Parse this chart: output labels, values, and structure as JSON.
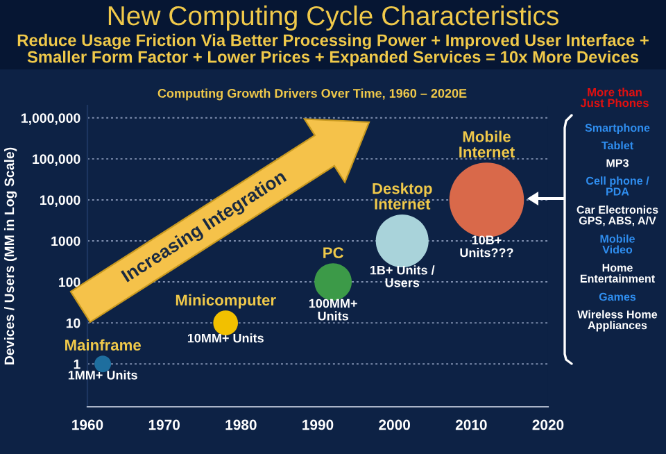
{
  "chart_data": {
    "type": "bubble",
    "title": "New Computing Cycle Characteristics",
    "subtitle": "Reduce Usage Friction Via Better Processing Power + Improved User Interface +\nSmaller Form Factor + Lower Prices + Expanded Services = 10x More Devices",
    "ylabel": "Devices / Users (MM in Log Scale)",
    "series": [
      {
        "x": [
          1962,
          1978,
          1992,
          2001,
          2012
        ],
        "values": [
          1,
          10,
          100,
          1000,
          10000
        ],
        "sizes": [
          0.05,
          0.11,
          0.25,
          0.5,
          1
        ],
        "colors": [
          "#1e6e9e",
          "#f2c000",
          "#3c9a48",
          "#a9d3da",
          "#d9694a"
        ]
      }
    ],
    "log": "y",
    "xlim": [
      1960,
      2020
    ],
    "xticks": [
      1960,
      1970,
      1980,
      1990,
      2000,
      2010,
      2020
    ],
    "ylim": [
      0.09,
      2000000
    ],
    "yticks": [
      1,
      10,
      100,
      1000,
      {
        "value": 10000,
        "label": "10,000"
      },
      {
        "value": 100000,
        "label": "100,000"
      },
      {
        "value": 1000000,
        "label": "1,000,000"
      }
    ],
    "grid": "y",
    "annotations": [
      "Computing Growth Drivers Over Time, 1960 – 2020E",
      "Increasing Integration",
      "More than\nJust Phones",
      "Smartphone",
      "Tablet",
      "MP3",
      "Cell phone /\nPDA",
      "Car Electronics\nGPS, ABS, A/V",
      "Mobile\nVideo",
      "Home\nEntertainment",
      "Games",
      "Wireless Home\nAppliances",
      {
        "text": "Mainframe",
        "x": 1962,
        "y": 1
      },
      {
        "text": "1MM+ Units",
        "x": 1962,
        "y": 1
      },
      {
        "text": "Minicomputer",
        "x": 1978,
        "y": 10
      },
      {
        "text": "10MM+ Units",
        "x": 1978,
        "y": 10
      },
      {
        "text": "PC",
        "x": 1992,
        "y": 100
      },
      {
        "text": "100MM+\nUnits",
        "x": 1992,
        "y": 100
      },
      {
        "text": "Desktop\nInternet",
        "x": 2001,
        "y": 1000
      },
      {
        "text": "1B+ Units /\nUsers",
        "x": 2001,
        "y": 1000
      },
      {
        "text": "Mobile\nInternet",
        "x": 2012,
        "y": 10000
      },
      {
        "text": "10B+\nUnits???",
        "x": 2012,
        "y": 10000
      }
    ]
  }
}
